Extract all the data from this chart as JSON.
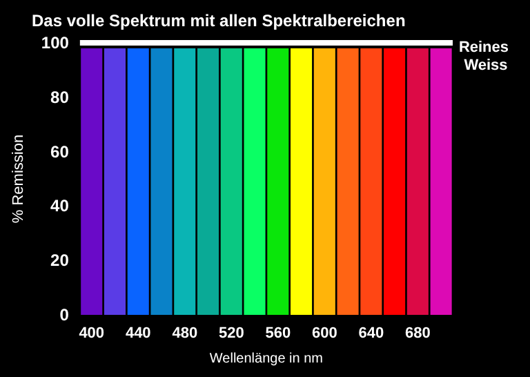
{
  "chart_data": {
    "type": "bar",
    "title": "Das volle Spektrum mit allen Spektralbereichen",
    "xlabel": "Wellenlänge in nm",
    "ylabel": "% Remission",
    "categories": [
      "400",
      null,
      "440",
      null,
      "480",
      null,
      "520",
      null,
      "560",
      null,
      "600",
      null,
      "640",
      null,
      "680",
      null
    ],
    "values": [
      98,
      98,
      98,
      98,
      98,
      98,
      98,
      98,
      98,
      98,
      98,
      98,
      98,
      98,
      98,
      98
    ],
    "colors": [
      "#6a0ac8",
      "#5a3ce6",
      "#0a64ff",
      "#0a82c8",
      "#0ab4b4",
      "#0aaa96",
      "#0ac882",
      "#0aff64",
      "#0ae60a",
      "#ffff00",
      "#ffb40a",
      "#ff6414",
      "#ff4614",
      "#ff0000",
      "#dc0a46",
      "#dc0ab4"
    ],
    "ylim": [
      0,
      100
    ],
    "yticks": [
      0,
      20,
      40,
      60,
      80,
      100
    ],
    "ref_lines": [
      {
        "axis": "y",
        "value": 100,
        "label": "Reines Weiss",
        "color": "#ffffff"
      }
    ],
    "grid": false
  }
}
